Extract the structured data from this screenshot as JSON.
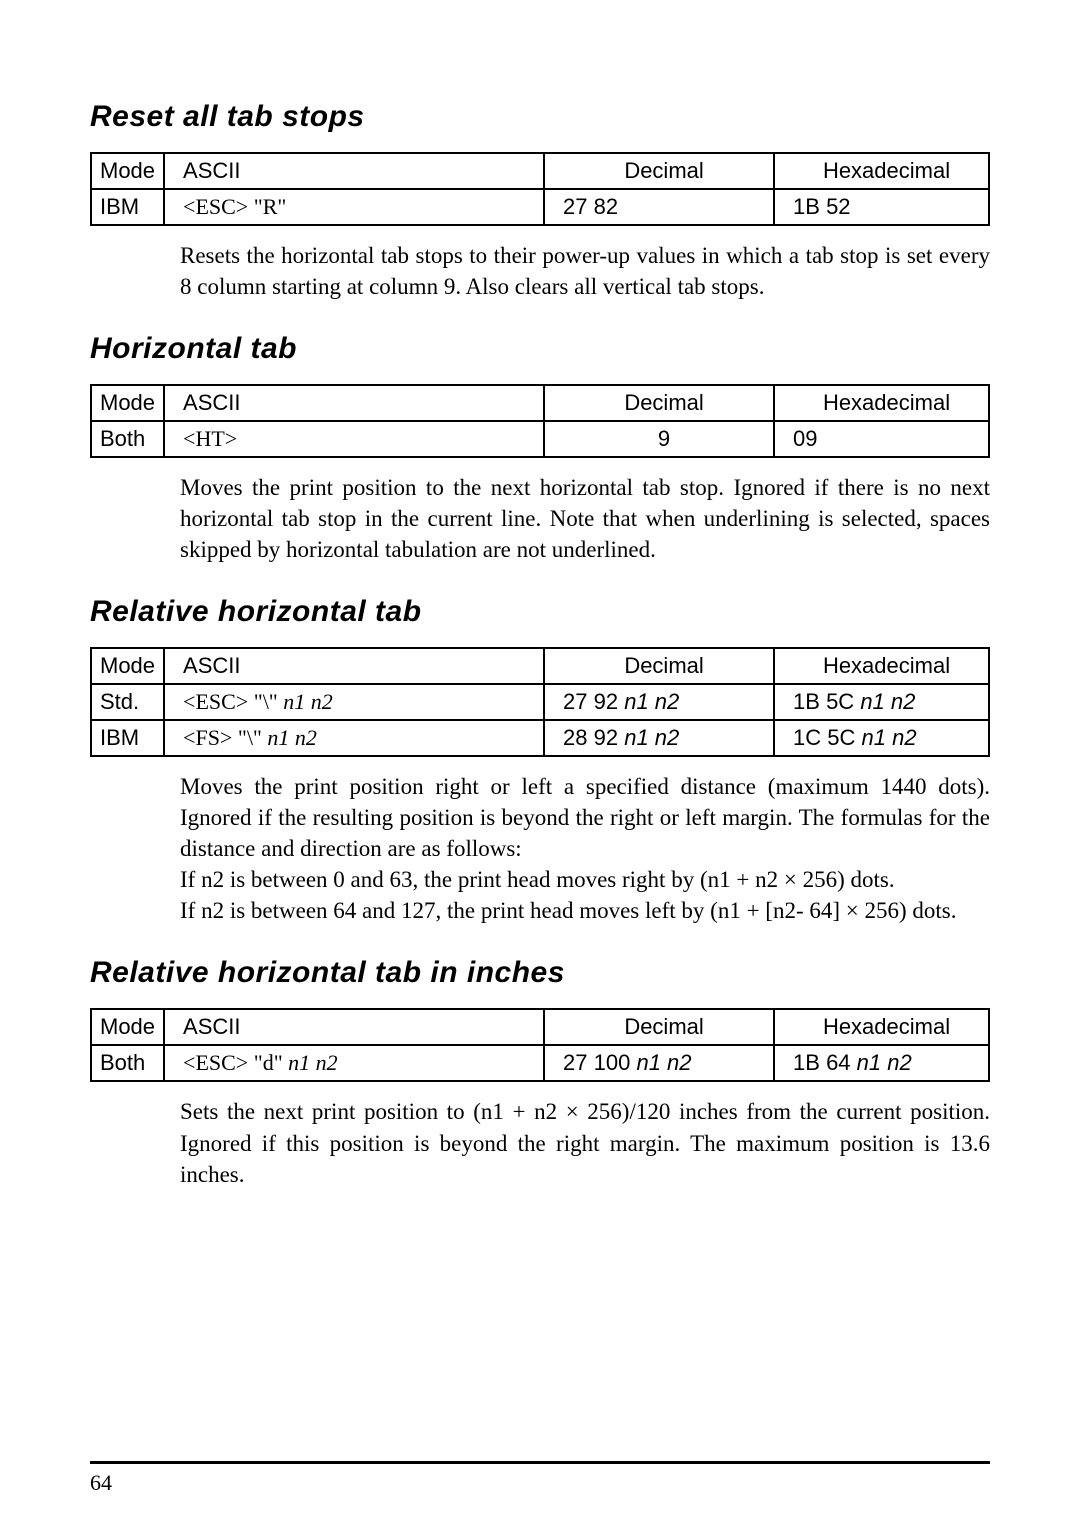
{
  "page_number": "64",
  "sections": [
    {
      "title": "Reset all tab stops",
      "columns": [
        "Mode",
        "ASCII",
        "Decimal",
        "Hexadecimal"
      ],
      "rows": [
        {
          "mode": "IBM",
          "ascii": "<ESC>   \"R\"",
          "decimal": "27    82",
          "hex": "1B    52"
        }
      ],
      "desc": "Resets the horizontal tab stops to their power-up values in which a tab stop is set every 8 column starting at column 9. Also clears all vertical tab stops."
    },
    {
      "title": "Horizontal tab",
      "columns": [
        "Mode",
        "ASCII",
        "Decimal",
        "Hexadecimal"
      ],
      "rows": [
        {
          "mode": "Both",
          "ascii": "<HT>",
          "decimal": "9",
          "hex": "09"
        }
      ],
      "desc": "Moves the print position to the next horizontal tab stop. Ignored if there is no next horizontal tab stop in the current line. Note that when underlining is selected, spaces skipped by horizontal tabulation are not underlined."
    },
    {
      "title": "Relative horizontal tab",
      "columns": [
        "Mode",
        "ASCII",
        "Decimal",
        "Hexadecimal"
      ],
      "rows": [
        {
          "mode": "Std.",
          "ascii_pre": "<ESC>    \"\\\"   ",
          "ascii_it": "n1    n2",
          "decimal_pre": "27   92   ",
          "decimal_it": "n1   n2",
          "hex_pre": "1B   5C   ",
          "hex_it": "n1   n2"
        },
        {
          "mode": "IBM",
          "ascii_pre": "  <FS>     \"\\\"   ",
          "ascii_it": "n1    n2",
          "decimal_pre": "28   92   ",
          "decimal_it": "n1   n2",
          "hex_pre": "1C   5C   ",
          "hex_it": "n1   n2"
        }
      ],
      "desc_parts": {
        "p1": "Moves the print position right or left a specified distance (maximum 1440 dots). Ignored if the resulting position is beyond the right or left margin. The formulas for the distance and direction are as follows:",
        "p2a": "If ",
        "p2b": "n2",
        "p2c": " is between 0 and 63, the print head moves right by (",
        "p2d": "n1",
        "p2e": " + ",
        "p2f": "n2",
        "p2g": " × 256) dots.",
        "p3a": "If ",
        "p3b": "n2",
        "p3c": " is between 64 and 127, the print head moves left by (",
        "p3d": "n1",
        "p3e": " + [",
        "p3f": "n2",
        "p3g": "- 64] × 256) dots."
      }
    },
    {
      "title": "Relative horizontal tab in inches",
      "columns": [
        "Mode",
        "ASCII",
        "Decimal",
        "Hexadecimal"
      ],
      "rows": [
        {
          "mode": "Both",
          "ascii_pre": "<ESC>   \"d\"   ",
          "ascii_it": "n1    n2",
          "decimal_pre": "27  100   ",
          "decimal_it": "n1   n2",
          "hex_pre": "1B   64   ",
          "hex_it": "n1   n2"
        }
      ],
      "desc_parts": {
        "a": "Sets the next print position to (",
        "b": "n1",
        "c": " + ",
        "d": "n2",
        "e": " × 256)/120 inches from the current position. Ignored if this position is beyond the right margin. The maximum position is 13.6 inches."
      }
    }
  ]
}
